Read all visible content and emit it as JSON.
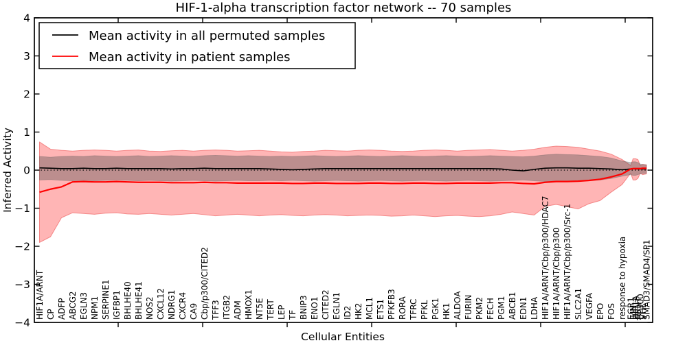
{
  "chart_data": {
    "type": "line",
    "title": "HIF-1-alpha transcription factor network -- 70 samples",
    "xlabel": "Cellular Entities",
    "ylabel": "Inferred Activity",
    "ylim": [
      -4,
      4
    ],
    "yticks": [
      "-4",
      "-3",
      "-2",
      "-1",
      "0",
      "1",
      "2",
      "3",
      "4"
    ],
    "ytick_values": [
      -4,
      -3,
      -2,
      -1,
      0,
      1,
      2,
      3,
      4
    ],
    "grid": false,
    "zero_line_style": "dotted",
    "legend_position": "upper left",
    "legend": [
      {
        "label": "Mean activity in all permuted samples",
        "color": "#000000"
      },
      {
        "label": "Mean activity in patient samples",
        "color": "#ff0000"
      }
    ],
    "colors": {
      "patient_line": "#ff0000",
      "permuted_line": "#000000",
      "patient_band_fill": "rgba(255,30,30,0.33)",
      "patient_band_edge": "rgba(235,70,70,0.55)",
      "permuted_band_fill": "rgba(80,80,80,0.38)",
      "permuted_band_edge": "rgba(90,90,90,0.35)"
    },
    "categories": [
      "HIF1A/ARNT",
      "CP",
      "ADFP",
      "ABCG2",
      "EGLN3",
      "NPM1",
      "SERPINE1",
      "IGFBP1",
      "BHLHE40",
      "BHLHE41",
      "NOS2",
      "CXCL12",
      "NDRG1",
      "CXCR4",
      "CA9",
      "Cbp/p300/CITED2",
      "TFF3",
      "ITGB2",
      "ADM",
      "HMOX1",
      "NT5E",
      "TERT",
      "LEP",
      "TF",
      "BNIP3",
      "ENO1",
      "CITED2",
      "EGLN1",
      "ID2",
      "HK2",
      "MCL1",
      "ETS1",
      "PFKFB3",
      "RORA",
      "TFRC",
      "PFKL",
      "PGK1",
      "HK1",
      "ALDOA",
      "FURIN",
      "PKM2",
      "FECH",
      "PGM1",
      "ABCB1",
      "EDN1",
      "LDHA",
      "HIF1A/ARNT/Cbp/p300/HDAC7",
      "HIF1A/ARNT/Cbp/p300",
      "HIF1A/ARNT/Cbp/p300/Src-1",
      "SLC2A1",
      "VEGFA",
      "EPO",
      "FOS",
      "response to hypoxia",
      "EGR1",
      "JUN",
      "HIF1A",
      "ARNT",
      "EP300",
      "VHL",
      "SMAD3/SMAD4/SP1"
    ],
    "series": [
      {
        "name": "Mean activity in all permuted samples",
        "values": [
          0.06,
          0.05,
          0.04,
          0.04,
          0.05,
          0.04,
          0.04,
          0.05,
          0.04,
          0.04,
          0.04,
          0.04,
          0.03,
          0.04,
          0.04,
          0.05,
          0.04,
          0.04,
          0.04,
          0.04,
          0.04,
          0.03,
          0.02,
          0.01,
          0.02,
          0.03,
          0.04,
          0.04,
          0.04,
          0.04,
          0.04,
          0.04,
          0.04,
          0.04,
          0.04,
          0.04,
          0.04,
          0.04,
          0.04,
          0.04,
          0.04,
          0.04,
          0.03,
          0.0,
          -0.02,
          0.02,
          0.05,
          0.06,
          0.06,
          0.05,
          0.05,
          0.04,
          0.03,
          0.01,
          0.03,
          0.04,
          0.03,
          0.03,
          0.03,
          0.03,
          0.03
        ]
      },
      {
        "name": "Permuted band upper",
        "values": [
          0.36,
          0.34,
          0.36,
          0.37,
          0.36,
          0.38,
          0.37,
          0.36,
          0.37,
          0.38,
          0.36,
          0.37,
          0.38,
          0.37,
          0.36,
          0.38,
          0.39,
          0.38,
          0.37,
          0.38,
          0.37,
          0.36,
          0.37,
          0.36,
          0.37,
          0.38,
          0.37,
          0.36,
          0.37,
          0.38,
          0.37,
          0.36,
          0.37,
          0.38,
          0.37,
          0.36,
          0.37,
          0.38,
          0.37,
          0.36,
          0.37,
          0.38,
          0.37,
          0.36,
          0.35,
          0.37,
          0.4,
          0.42,
          0.41,
          0.4,
          0.38,
          0.36,
          0.32,
          0.24,
          0.2,
          0.22,
          0.22,
          0.2,
          0.16,
          0.15,
          0.14
        ]
      },
      {
        "name": "Permuted band lower",
        "values": [
          -0.26,
          -0.25,
          -0.27,
          -0.28,
          -0.27,
          -0.28,
          -0.27,
          -0.26,
          -0.27,
          -0.28,
          -0.27,
          -0.28,
          -0.29,
          -0.28,
          -0.27,
          -0.28,
          -0.29,
          -0.28,
          -0.27,
          -0.28,
          -0.28,
          -0.27,
          -0.28,
          -0.27,
          -0.28,
          -0.29,
          -0.28,
          -0.27,
          -0.28,
          -0.29,
          -0.28,
          -0.27,
          -0.28,
          -0.29,
          -0.28,
          -0.27,
          -0.28,
          -0.29,
          -0.28,
          -0.27,
          -0.28,
          -0.29,
          -0.28,
          -0.27,
          -0.26,
          -0.28,
          -0.3,
          -0.31,
          -0.3,
          -0.29,
          -0.28,
          -0.26,
          -0.22,
          -0.16,
          -0.12,
          -0.14,
          -0.14,
          -0.12,
          -0.1,
          -0.09,
          -0.08
        ]
      },
      {
        "name": "Mean activity in patient samples",
        "values": [
          -0.58,
          -0.5,
          -0.44,
          -0.31,
          -0.3,
          -0.31,
          -0.31,
          -0.3,
          -0.31,
          -0.32,
          -0.32,
          -0.32,
          -0.33,
          -0.33,
          -0.33,
          -0.32,
          -0.33,
          -0.33,
          -0.34,
          -0.34,
          -0.34,
          -0.34,
          -0.34,
          -0.35,
          -0.35,
          -0.34,
          -0.34,
          -0.35,
          -0.35,
          -0.35,
          -0.34,
          -0.34,
          -0.35,
          -0.35,
          -0.34,
          -0.34,
          -0.35,
          -0.35,
          -0.34,
          -0.34,
          -0.34,
          -0.34,
          -0.33,
          -0.33,
          -0.35,
          -0.36,
          -0.32,
          -0.3,
          -0.3,
          -0.29,
          -0.27,
          -0.24,
          -0.18,
          -0.1,
          0.03,
          0.04,
          0.04,
          0.04,
          0.04,
          0.05,
          0.05
        ]
      },
      {
        "name": "Patient band upper",
        "values": [
          0.74,
          0.55,
          0.52,
          0.5,
          0.52,
          0.53,
          0.52,
          0.5,
          0.52,
          0.53,
          0.5,
          0.49,
          0.51,
          0.52,
          0.5,
          0.52,
          0.53,
          0.52,
          0.5,
          0.51,
          0.52,
          0.5,
          0.48,
          0.47,
          0.49,
          0.5,
          0.52,
          0.51,
          0.5,
          0.52,
          0.53,
          0.52,
          0.5,
          0.49,
          0.5,
          0.52,
          0.53,
          0.52,
          0.5,
          0.52,
          0.53,
          0.54,
          0.52,
          0.5,
          0.52,
          0.55,
          0.6,
          0.63,
          0.62,
          0.6,
          0.55,
          0.5,
          0.42,
          0.28,
          0.12,
          0.3,
          0.3,
          0.28,
          0.12,
          0.15,
          0.14
        ]
      },
      {
        "name": "Patient band lower",
        "values": [
          -1.9,
          -1.75,
          -1.25,
          -1.12,
          -1.14,
          -1.16,
          -1.13,
          -1.12,
          -1.15,
          -1.16,
          -1.14,
          -1.16,
          -1.18,
          -1.16,
          -1.14,
          -1.17,
          -1.2,
          -1.18,
          -1.16,
          -1.18,
          -1.2,
          -1.18,
          -1.17,
          -1.19,
          -1.2,
          -1.18,
          -1.17,
          -1.18,
          -1.2,
          -1.19,
          -1.18,
          -1.19,
          -1.21,
          -1.2,
          -1.18,
          -1.2,
          -1.22,
          -1.2,
          -1.19,
          -1.21,
          -1.22,
          -1.2,
          -1.16,
          -1.1,
          -1.14,
          -1.18,
          -0.95,
          -0.9,
          -0.96,
          -1.02,
          -0.88,
          -0.8,
          -0.58,
          -0.38,
          -0.08,
          -0.26,
          -0.26,
          -0.22,
          -0.08,
          -0.12,
          -0.1
        ]
      }
    ]
  }
}
